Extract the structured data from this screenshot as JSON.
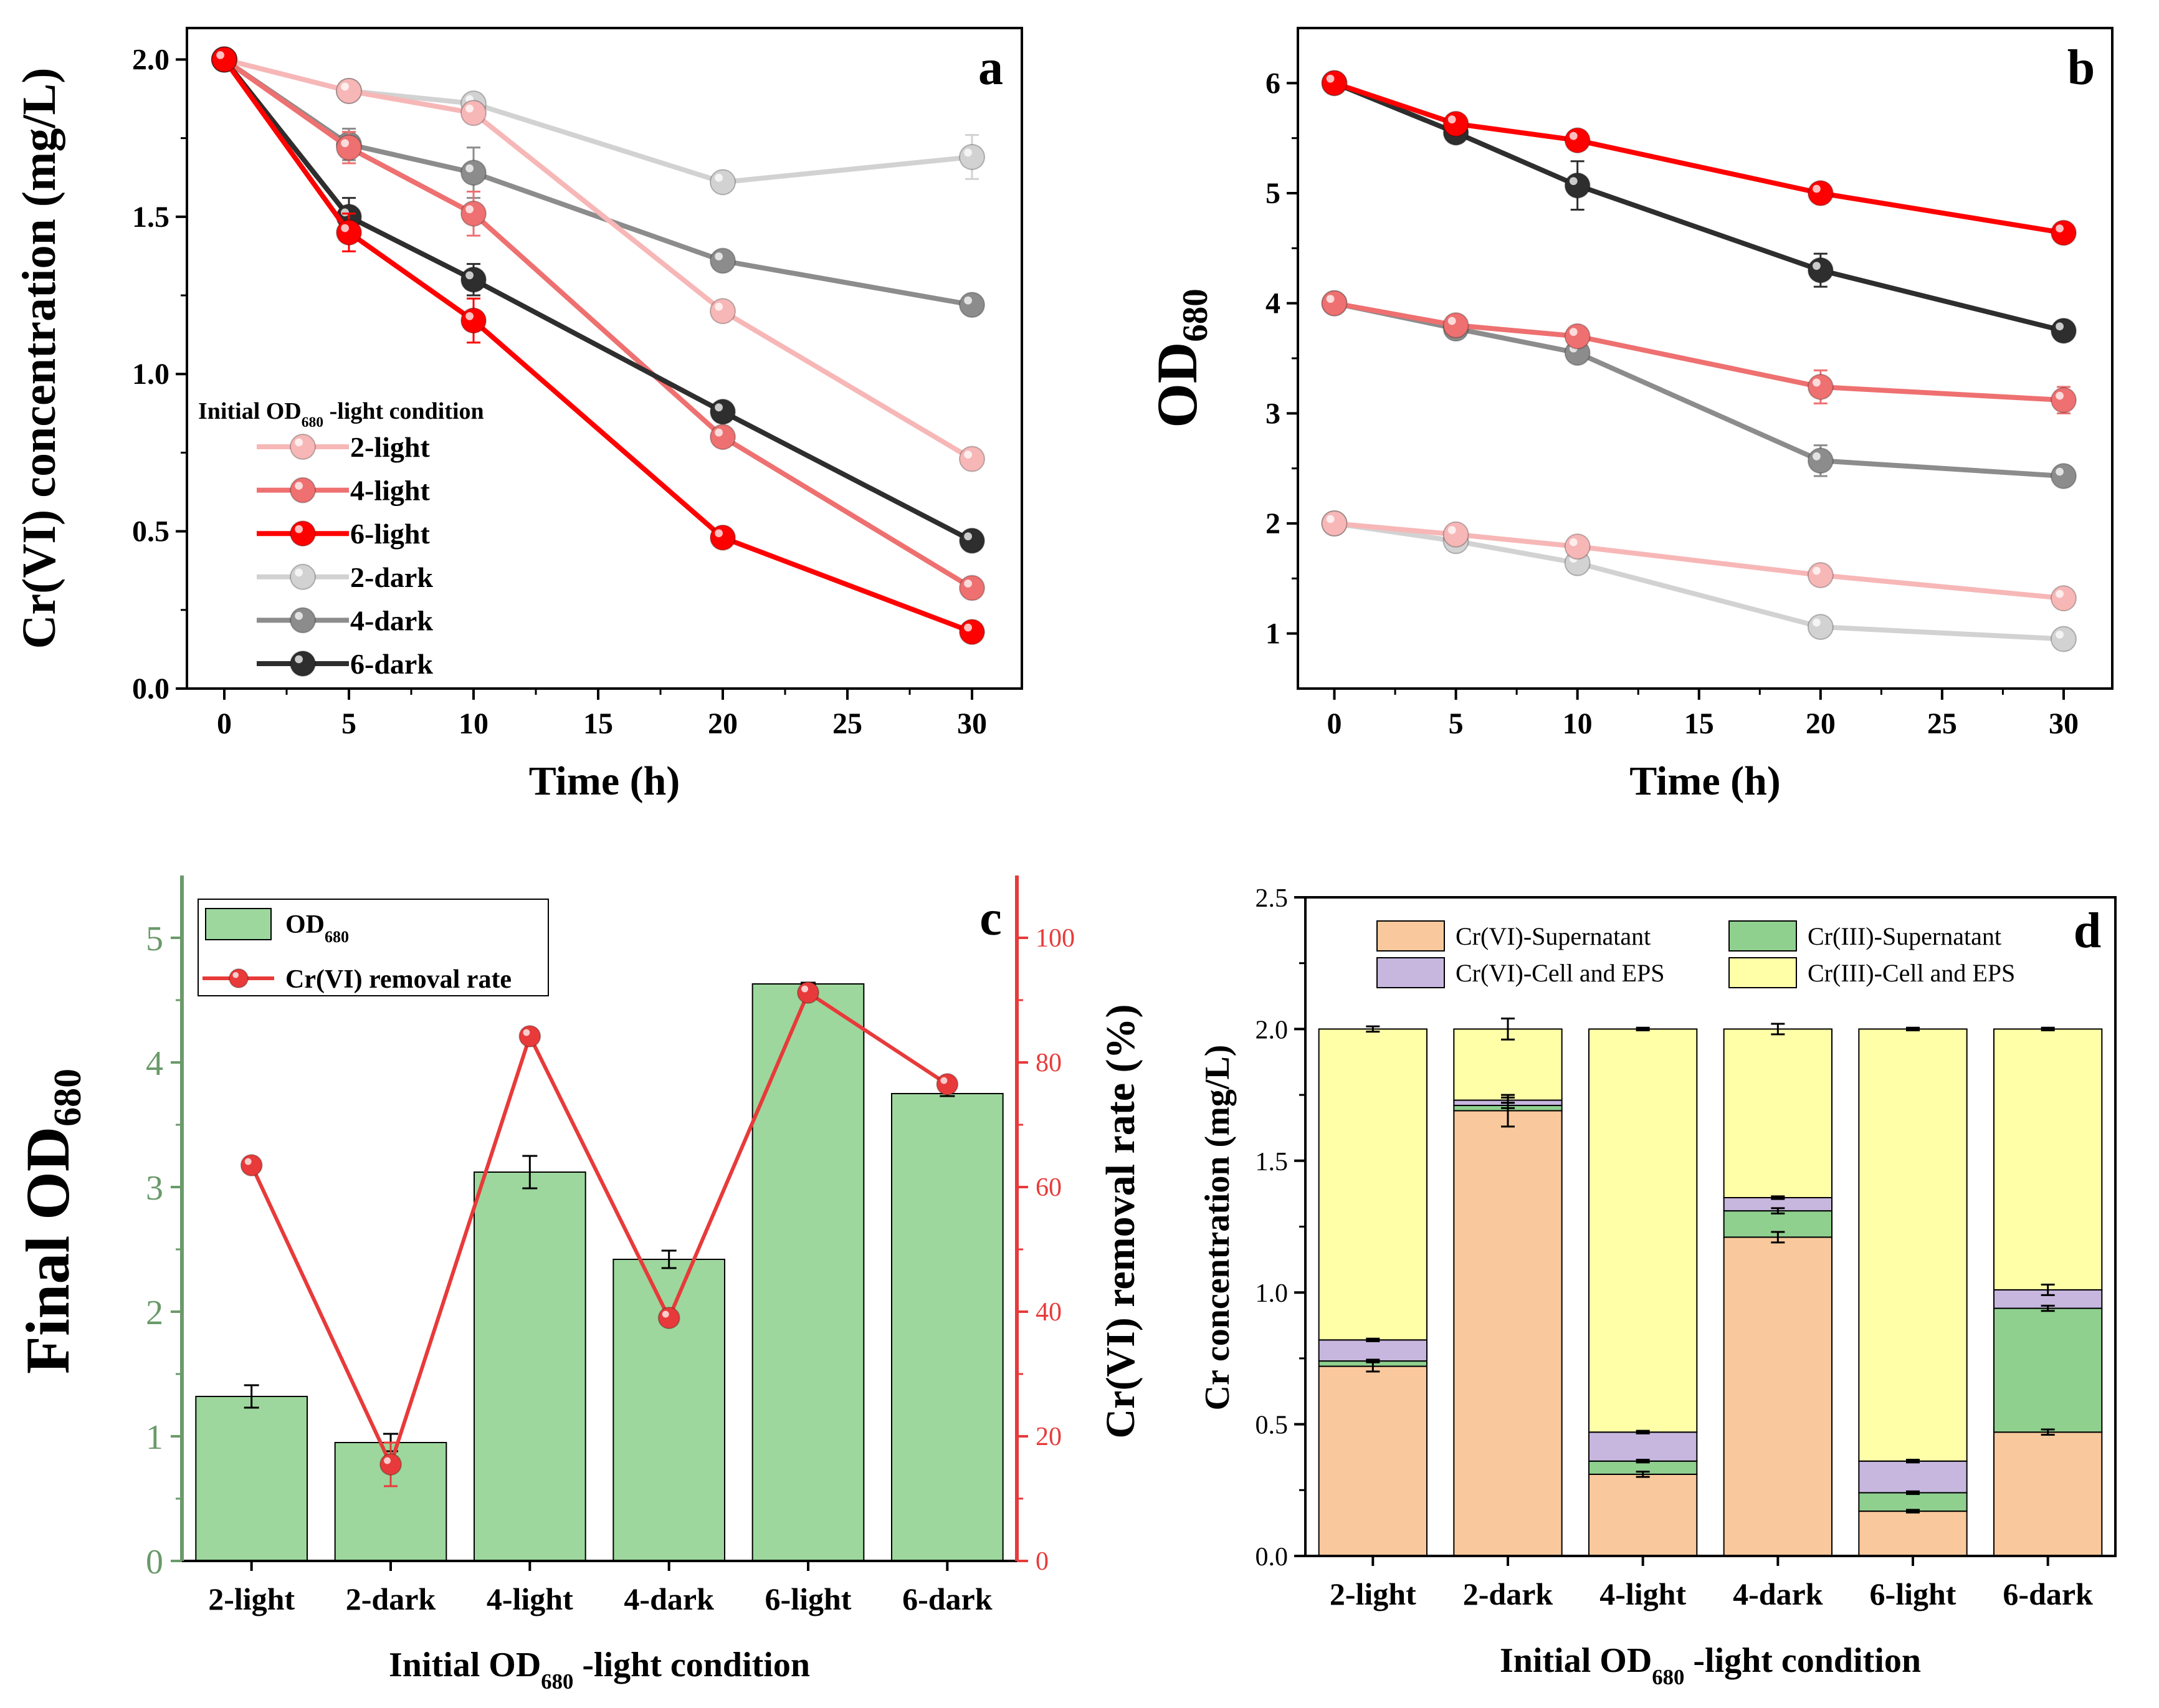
{
  "figure": {
    "description": "Four-panel scientific figure"
  },
  "colors": {
    "light2": "#F7B7B7",
    "light4": "#EE7070",
    "light6": "#FF0000",
    "dark2": "#D2D2D2",
    "dark4": "#8C8C8C",
    "dark6": "#2E2E2E",
    "bar_green": "#9DD79D",
    "red_axis": "#E83A3A",
    "green_axis": "#6A9A6A",
    "cr6_sup": "#F9C89C",
    "cr3_sup": "#8FD08F",
    "cr6_cell": "#C7B7DF",
    "cr3_cell": "#FFFFA8"
  },
  "chart_data": [
    {
      "id": "a",
      "type": "line",
      "panel_label": "a",
      "xlabel": "Time (h)",
      "ylabel": "Cr(VI) concentration (mg/L)",
      "xlim": [
        -1.5,
        32
      ],
      "ylim": [
        0,
        2.1
      ],
      "xticks": [
        0,
        5,
        10,
        15,
        20,
        25,
        30
      ],
      "xtick_labels": [
        "0",
        "5",
        "10",
        "15",
        "20",
        "25",
        "30"
      ],
      "yticks": [
        0,
        0.5,
        1.0,
        1.5,
        2.0
      ],
      "ytick_labels": [
        "0.0",
        "0.5",
        "1.0",
        "1.5",
        "2.0"
      ],
      "x": [
        0,
        5,
        10,
        20,
        30
      ],
      "legend_title": {
        "prefix": "Initial OD",
        "sub": "680",
        "suffix": " -light condition"
      },
      "series": [
        {
          "name": "2-light",
          "color": "#F7B7B7",
          "values": [
            2.0,
            1.9,
            1.83,
            1.2,
            0.73
          ],
          "errors": [
            0,
            0.02,
            0.03,
            0.02,
            0.02
          ]
        },
        {
          "name": "4-light",
          "color": "#EE7070",
          "values": [
            2.0,
            1.72,
            1.51,
            0.8,
            0.32
          ],
          "errors": [
            0,
            0.05,
            0.07,
            0.03,
            0.02
          ]
        },
        {
          "name": "6-light",
          "color": "#FF0000",
          "values": [
            2.0,
            1.45,
            1.17,
            0.48,
            0.18
          ],
          "errors": [
            0,
            0.06,
            0.07,
            0.02,
            0.01
          ]
        },
        {
          "name": "2-dark",
          "color": "#D2D2D2",
          "values": [
            2.0,
            1.9,
            1.86,
            1.61,
            1.69
          ],
          "errors": [
            0,
            0.02,
            0.02,
            0.02,
            0.07
          ]
        },
        {
          "name": "4-dark",
          "color": "#8C8C8C",
          "values": [
            2.0,
            1.73,
            1.64,
            1.36,
            1.22
          ],
          "errors": [
            0,
            0.05,
            0.08,
            0.02,
            0.02
          ]
        },
        {
          "name": "6-dark",
          "color": "#2E2E2E",
          "values": [
            2.0,
            1.5,
            1.3,
            0.88,
            0.47
          ],
          "errors": [
            0,
            0.06,
            0.05,
            0.02,
            0.02
          ]
        }
      ]
    },
    {
      "id": "b",
      "type": "line",
      "panel_label": "b",
      "xlabel": "Time (h)",
      "ylabel_prefix": "OD",
      "ylabel_sub": "680",
      "xlim": [
        -1.5,
        32
      ],
      "ylim": [
        0.5,
        6.5
      ],
      "xticks": [
        0,
        5,
        10,
        15,
        20,
        25,
        30
      ],
      "xtick_labels": [
        "0",
        "5",
        "10",
        "15",
        "20",
        "25",
        "30"
      ],
      "yticks": [
        1,
        2,
        3,
        4,
        5,
        6
      ],
      "ytick_labels": [
        "1",
        "2",
        "3",
        "4",
        "5",
        "6"
      ],
      "x": [
        0,
        5,
        10,
        20,
        30
      ],
      "series": [
        {
          "name": "6-light",
          "color": "#FF0000",
          "values": [
            6.0,
            5.63,
            5.48,
            5.0,
            4.64
          ],
          "errors": [
            0,
            0.05,
            0.08,
            0.05,
            0.04
          ]
        },
        {
          "name": "6-dark",
          "color": "#2E2E2E",
          "values": [
            6.0,
            5.55,
            5.07,
            4.3,
            3.75
          ],
          "errors": [
            0,
            0.05,
            0.22,
            0.15,
            0.05
          ]
        },
        {
          "name": "4-light",
          "color": "#EE7070",
          "values": [
            4.0,
            3.8,
            3.7,
            3.24,
            3.12
          ],
          "errors": [
            0,
            0.05,
            0.07,
            0.15,
            0.12
          ]
        },
        {
          "name": "4-dark",
          "color": "#8C8C8C",
          "values": [
            4.0,
            3.77,
            3.55,
            2.57,
            2.43
          ],
          "errors": [
            0,
            0.05,
            0.07,
            0.14,
            0.05
          ]
        },
        {
          "name": "2-light",
          "color": "#F7B7B7",
          "values": [
            2.0,
            1.9,
            1.79,
            1.53,
            1.32
          ],
          "errors": [
            0,
            0.04,
            0.04,
            0.05,
            0.04
          ]
        },
        {
          "name": "2-dark",
          "color": "#D2D2D2",
          "values": [
            2.0,
            1.84,
            1.64,
            1.06,
            0.95
          ],
          "errors": [
            0,
            0.04,
            0.04,
            0.04,
            0.04
          ]
        }
      ]
    },
    {
      "id": "c",
      "type": "bar",
      "panel_label": "c",
      "xlabel_prefix": "Initial OD",
      "xlabel_sub": "680",
      "xlabel_suffix": " -light condition",
      "ylabel_prefix": "Final OD",
      "ylabel_sub": "680",
      "y2label": "Cr(VI) removal rate (%)",
      "categories": [
        "2-light",
        "2-dark",
        "4-light",
        "4-dark",
        "6-light",
        "6-dark"
      ],
      "ylim": [
        0,
        5.5
      ],
      "yticks": [
        0,
        1,
        2,
        3,
        4,
        5
      ],
      "ytick_labels": [
        "0",
        "1",
        "2",
        "3",
        "4",
        "5"
      ],
      "y2lim": [
        0,
        110
      ],
      "y2ticks": [
        0,
        20,
        40,
        60,
        80,
        100
      ],
      "y2tick_labels": [
        "0",
        "20",
        "40",
        "60",
        "80",
        "100"
      ],
      "bar_series": {
        "name_prefix": "OD",
        "name_sub": "680",
        "values": [
          1.32,
          0.95,
          3.12,
          2.42,
          4.63,
          3.75
        ],
        "errors": [
          0.09,
          0.07,
          0.13,
          0.07,
          0.01,
          0.02
        ]
      },
      "line_series": {
        "name": "Cr(VI) removal rate",
        "values": [
          63.5,
          15.5,
          84.2,
          39.0,
          91.2,
          76.5
        ],
        "errors": [
          0,
          3.5,
          0,
          0,
          0,
          0
        ]
      }
    },
    {
      "id": "d",
      "type": "bar",
      "stacked": true,
      "panel_label": "d",
      "xlabel_prefix": "Initial OD",
      "xlabel_sub": "680",
      "xlabel_suffix": " -light condition",
      "ylabel": "Cr concentration (mg/L)",
      "categories": [
        "2-light",
        "2-dark",
        "4-light",
        "4-dark",
        "6-light",
        "6-dark"
      ],
      "ylim": [
        0,
        2.5
      ],
      "yticks": [
        0,
        0.5,
        1.0,
        1.5,
        2.0,
        2.5
      ],
      "ytick_labels": [
        "0.0",
        "0.5",
        "1.0",
        "1.5",
        "2.0",
        "2.5"
      ],
      "series": [
        {
          "name": "Cr(VI)-Supernatant",
          "color": "#F9C89C",
          "values": [
            0.72,
            1.69,
            0.31,
            1.21,
            0.17,
            0.47
          ],
          "errors": [
            0.02,
            0.06,
            0.01,
            0.02,
            0.005,
            0.01
          ]
        },
        {
          "name": "Cr(III)-Supernatant",
          "color": "#8FD08F",
          "values": [
            0.02,
            0.02,
            0.05,
            0.1,
            0.07,
            0.47
          ],
          "errors": [
            0.005,
            0.01,
            0.005,
            0.01,
            0.005,
            0.01
          ]
        },
        {
          "name": "Cr(VI)-Cell and EPS",
          "color": "#C7B7DF",
          "values": [
            0.08,
            0.02,
            0.11,
            0.05,
            0.12,
            0.07
          ],
          "errors": [
            0.005,
            0.01,
            0.005,
            0.005,
            0.005,
            0.02
          ]
        },
        {
          "name": "Cr(III)-Cell and EPS",
          "color": "#FFFFA8",
          "values": [
            1.18,
            0.27,
            1.53,
            0.64,
            1.64,
            0.99
          ],
          "errors": [
            0.01,
            0.04,
            0.005,
            0.02,
            0.005,
            0.005
          ]
        }
      ]
    }
  ]
}
